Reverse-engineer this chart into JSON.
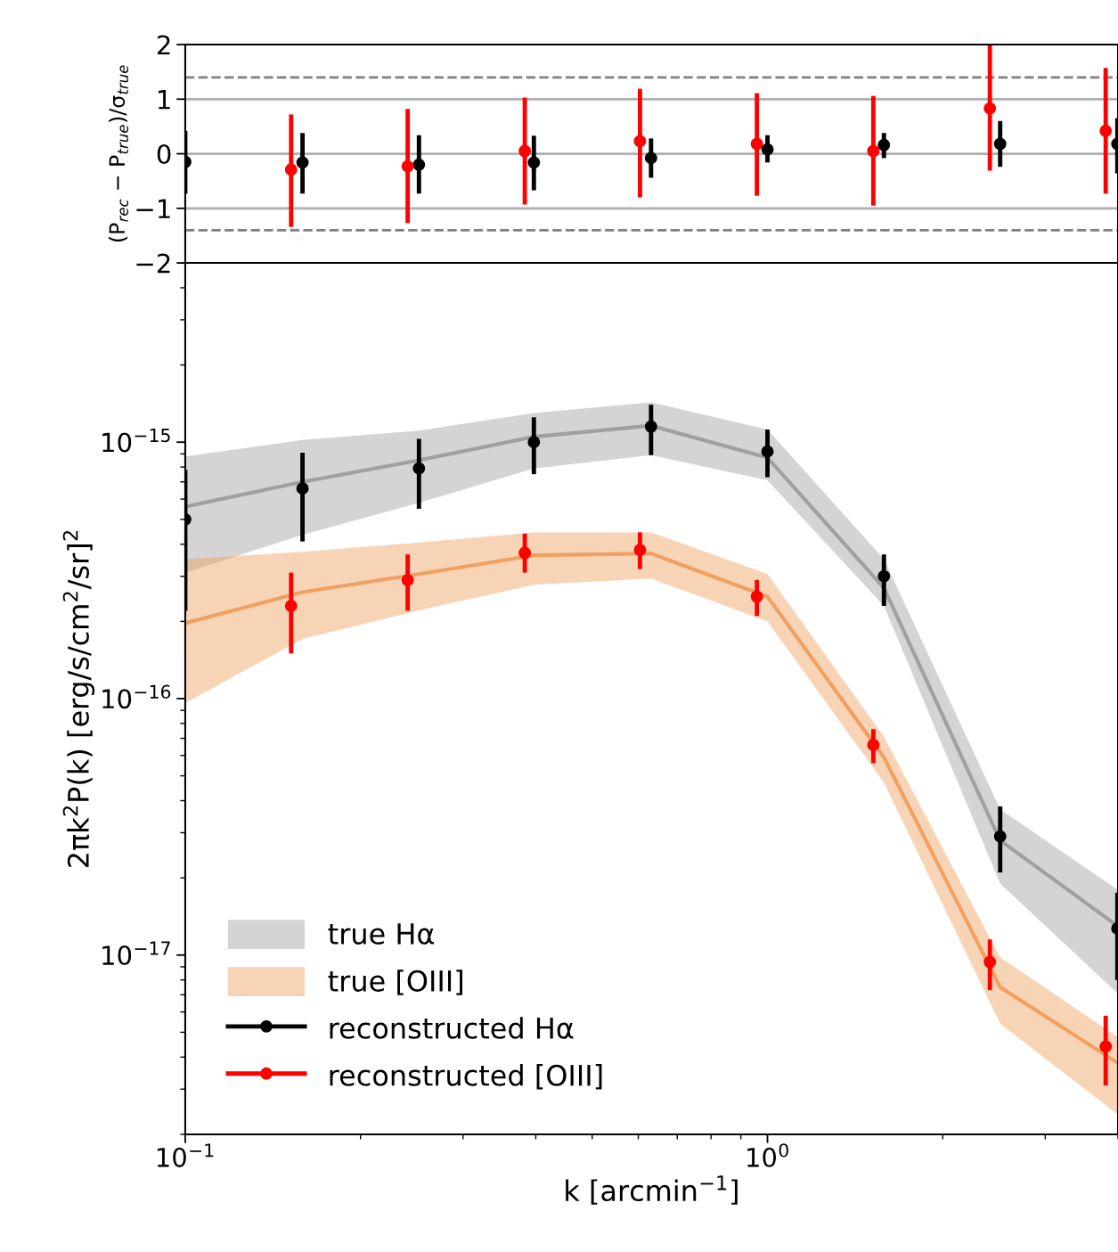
{
  "chart_data": [
    {
      "type": "scatter",
      "ylabel": "(P$_{rec}$ − P$_{true}$)/σ$_{true}$",
      "log": "x",
      "grid": false,
      "legend": false,
      "tick_labels": "y",
      "xlim": [
        0.1,
        4.0
      ],
      "ylim": [
        -2,
        2
      ],
      "yticks": [
        {
          "value": -2,
          "label": "−2"
        },
        {
          "value": -1,
          "label": "−1"
        },
        0,
        1,
        2
      ],
      "ref_lines": [
        {
          "axis": "y",
          "value": 1,
          "color": "#b0b0b0",
          "line_style": "solid"
        },
        {
          "axis": "y",
          "value": 0,
          "color": "#b0b0b0",
          "line_style": "solid"
        },
        {
          "axis": "y",
          "value": -1,
          "color": "#b0b0b0",
          "line_style": "solid"
        },
        {
          "axis": "y",
          "value": 1.4,
          "color": "#808080",
          "line_style": "dashed"
        },
        {
          "axis": "y",
          "value": -1.4,
          "color": "#808080",
          "line_style": "dashed"
        }
      ],
      "series": [
        {
          "marker": "circle",
          "color": "#000000",
          "x": [
            0.1,
            0.159,
            0.252,
            0.397,
            0.631,
            1.0,
            1.585,
            2.51,
            3.99
          ],
          "values": [
            -0.15,
            -0.16,
            -0.2,
            -0.16,
            -0.08,
            0.08,
            0.16,
            0.18,
            0.18
          ],
          "errors": [
            [
              -0.73,
              0.42
            ],
            [
              -0.73,
              0.38
            ],
            [
              -0.73,
              0.34
            ],
            [
              -0.67,
              0.33
            ],
            [
              -0.44,
              0.28
            ],
            [
              -0.16,
              0.34
            ],
            [
              -0.08,
              0.38
            ],
            [
              -0.24,
              0.6
            ],
            [
              -0.36,
              0.65
            ]
          ]
        },
        {
          "marker": "circle",
          "color": "#ff0000",
          "x": [
            0.152,
            0.241,
            0.383,
            0.604,
            0.959,
            1.52,
            2.41,
            3.81
          ],
          "values": [
            -0.29,
            -0.23,
            0.05,
            0.23,
            0.18,
            0.05,
            0.83,
            0.42
          ],
          "errors": [
            [
              -1.34,
              0.72
            ],
            [
              -1.27,
              0.82
            ],
            [
              -0.93,
              1.03
            ],
            [
              -0.8,
              1.19
            ],
            [
              -0.77,
              1.11
            ],
            [
              -0.95,
              1.06
            ],
            [
              -0.31,
              2.0
            ],
            [
              -0.73,
              1.57
            ]
          ]
        }
      ]
    },
    {
      "type": "line",
      "xlabel": "k [arcmin$^{−1}$]",
      "ylabel": "2πk$^{2}$P(k) [erg/s/cm$^{2}$/sr]$^{2}$",
      "log": "xy",
      "grid": false,
      "legend": "bottom left",
      "xlim": [
        0.1,
        4.0
      ],
      "xticks": [
        {
          "value": 0.1,
          "label": "10$^{−1}$"
        },
        {
          "value": 1,
          "label": "10$^{0}$"
        }
      ],
      "ylim": [
        2e-18,
        5e-15
      ],
      "yticks": [
        {
          "value": 1e-17,
          "label": "10$^{−17}$"
        },
        {
          "value": 1e-16,
          "label": "10$^{−16}$"
        },
        {
          "value": 1e-15,
          "label": "10$^{−15}$"
        }
      ],
      "series": [
        {
          "name": "true Hα",
          "color": "#a0a0a0",
          "x": [
            0.1,
            0.159,
            0.252,
            0.397,
            0.631,
            1.0,
            1.585,
            2.51,
            3.99
          ],
          "values": [
            5.6e-16,
            7e-16,
            8.5e-16,
            1.05e-15,
            1.16e-15,
            8.7e-16,
            2.7e-16,
            2.8e-17,
            1.3e-17
          ],
          "lower": [
            3.1e-16,
            4.35e-16,
            5.8e-16,
            7.9e-16,
            8.9e-16,
            7.1e-16,
            2.3e-16,
            1.9e-17,
            7.1e-18
          ],
          "upper": [
            8.8e-16,
            1.02e-15,
            1.11e-15,
            1.3e-15,
            1.43e-15,
            1.12e-15,
            3.5e-16,
            3.7e-17,
            1.8e-17
          ]
        },
        {
          "name": "true [OIII]",
          "color": "#f0a060",
          "x": [
            0.1,
            0.159,
            0.252,
            0.397,
            0.631,
            1.0,
            1.585,
            2.51,
            3.99
          ],
          "values": [
            1.97e-16,
            2.6e-16,
            3.06e-16,
            3.62e-16,
            3.68e-16,
            2.5e-16,
            5.9e-17,
            7.5e-18,
            3.8e-18
          ],
          "lower": [
            9.6e-17,
            1.71e-16,
            2.21e-16,
            2.78e-16,
            2.94e-16,
            2e-16,
            4.7e-17,
            5.4e-18,
            2.4e-18
          ],
          "upper": [
            3.5e-16,
            3.74e-16,
            4.06e-16,
            4.45e-16,
            4.45e-16,
            3.06e-16,
            7.1e-17,
            9.8e-18,
            4.8e-18
          ]
        },
        {
          "type": "scatter",
          "marker": "circle",
          "name": "reconstructed Hα",
          "color": "#000000",
          "x": [
            0.1,
            0.159,
            0.252,
            0.397,
            0.631,
            1.0,
            1.585,
            2.51,
            3.99
          ],
          "values": [
            5e-16,
            6.6e-16,
            7.9e-16,
            1e-15,
            1.15e-15,
            9.2e-16,
            3e-16,
            2.9e-17,
            1.27e-17
          ],
          "errors": [
            [
              2.2e-16,
              7.8e-16
            ],
            [
              4.1e-16,
              9.1e-16
            ],
            [
              5.5e-16,
              1.03e-15
            ],
            [
              7.5e-16,
              1.25e-15
            ],
            [
              8.9e-16,
              1.4e-15
            ],
            [
              7.3e-16,
              1.12e-15
            ],
            [
              2.3e-16,
              3.65e-16
            ],
            [
              2.1e-17,
              3.8e-17
            ],
            [
              8e-18,
              1.75e-17
            ]
          ]
        },
        {
          "type": "scatter",
          "marker": "circle",
          "name": "reconstructed [OIII]",
          "color": "#ff0000",
          "x": [
            0.152,
            0.241,
            0.383,
            0.604,
            0.959,
            1.52,
            2.41,
            3.81
          ],
          "values": [
            2.3e-16,
            2.9e-16,
            3.7e-16,
            3.8e-16,
            2.5e-16,
            6.6e-17,
            9.4e-18,
            4.4e-18
          ],
          "errors": [
            [
              1.5e-16,
              3.1e-16
            ],
            [
              2.2e-16,
              3.65e-16
            ],
            [
              3.1e-16,
              4.4e-16
            ],
            [
              3.2e-16,
              4.45e-16
            ],
            [
              2.1e-16,
              2.9e-16
            ],
            [
              5.6e-17,
              7.6e-17
            ],
            [
              7.3e-18,
              1.15e-17
            ],
            [
              3.1e-18,
              5.8e-18
            ]
          ]
        }
      ]
    }
  ]
}
